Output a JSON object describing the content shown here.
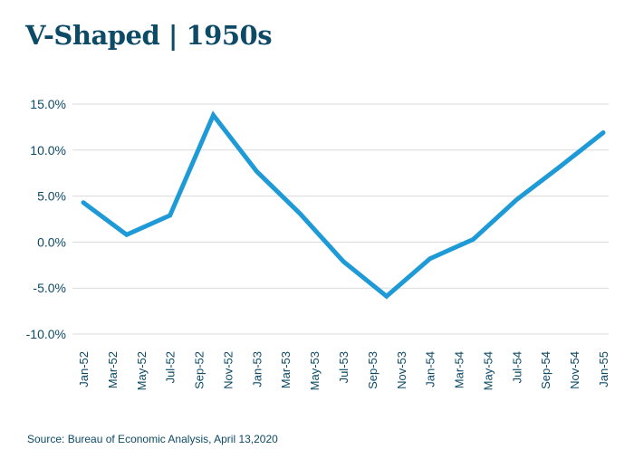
{
  "title": "V-Shaped | 1950s",
  "source": "Source: Bureau of Economic Analysis, April 13,2020",
  "colors": {
    "line": "#1e9ad6",
    "grid": "#d9d9d9",
    "text": "#0d4a66"
  },
  "chart_data": {
    "type": "line",
    "title": "V-Shaped | 1950s",
    "xlabel": "",
    "ylabel": "",
    "categories": [
      "Jan-52",
      "Mar-52",
      "May-52",
      "Jul-52",
      "Sep-52",
      "Nov-52",
      "Jan-53",
      "Mar-53",
      "May-53",
      "Jul-53",
      "Sep-53",
      "Nov-53",
      "Jan-54",
      "Mar-54",
      "May-54",
      "Jul-54",
      "Sep-54",
      "Nov-54",
      "Jan-55"
    ],
    "points": [
      {
        "x": "Jan-52",
        "y": 4.3
      },
      {
        "x": "Apr-52",
        "y": 0.8
      },
      {
        "x": "Jul-52",
        "y": 2.9
      },
      {
        "x": "Oct-52",
        "y": 13.8
      },
      {
        "x": "Jan-53",
        "y": 7.7
      },
      {
        "x": "Apr-53",
        "y": 3.1
      },
      {
        "x": "Jul-53",
        "y": -2.1
      },
      {
        "x": "Oct-53",
        "y": -5.9
      },
      {
        "x": "Jan-54",
        "y": -1.8
      },
      {
        "x": "Apr-54",
        "y": 0.3
      },
      {
        "x": "Jul-54",
        "y": 4.6
      },
      {
        "x": "Oct-54",
        "y": 8.2
      },
      {
        "x": "Jan-55",
        "y": 11.9
      }
    ],
    "ylim": [
      -10,
      15
    ],
    "yticks": [
      "15.0%",
      "10.0%",
      "5.0%",
      "0.0%",
      "-5.0%",
      "-10.0%"
    ],
    "grid": true,
    "legend": "none"
  }
}
